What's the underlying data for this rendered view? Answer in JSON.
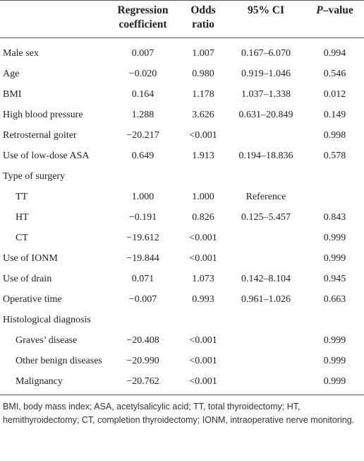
{
  "table": {
    "columns": [
      "Regression coefficient",
      "Odds ratio",
      "95% CI",
      {
        "italic": "P",
        "text": "–value"
      }
    ],
    "rows": [
      {
        "label": "Male sex",
        "coef": "0.007",
        "or": "1.007",
        "ci": "0.167–6.070",
        "p": "0.994"
      },
      {
        "label": "Age",
        "coef": "−0.020",
        "or": "0.980",
        "ci": "0.919–1.046",
        "p": "0.546"
      },
      {
        "label": "BMI",
        "coef": "0.164",
        "or": "1.178",
        "ci": "1.037–1.338",
        "p": "0.012"
      },
      {
        "label": "High blood pressure",
        "coef": "1.288",
        "or": "3.626",
        "ci": "0.631–20.849",
        "p": "0.149"
      },
      {
        "label": "Retrosternal goiter",
        "coef": "−20.217",
        "or": "<0.001",
        "p": "0.998"
      },
      {
        "label": "Use of low-dose ASA",
        "coef": "0.649",
        "or": "1.913",
        "ci": "0.194–18.836",
        "p": "0.578"
      },
      {
        "label": "Type of surgery",
        "items": [
          {
            "label": "TT",
            "coef": "1.000",
            "or": "1.000",
            "ci": "Reference"
          },
          {
            "label": "HT",
            "coef": "−0.191",
            "or": "0.826",
            "ci": "0.125–5.457",
            "p": "0.843"
          },
          {
            "label": "CT",
            "coef": "−19.612",
            "or": "<0.001",
            "p": "0.999"
          }
        ]
      },
      {
        "label": "Use of IONM",
        "coef": "−19.844",
        "or": "<0.001",
        "p": "0.999"
      },
      {
        "label": "Use of drain",
        "coef": "0.071",
        "or": "1.073",
        "ci": "0.142–8.104",
        "p": "0.945"
      },
      {
        "label": "Operative time",
        "coef": "−0.007",
        "or": "0.993",
        "ci": "0.961–1.026",
        "p": "0.663"
      },
      {
        "label": "Histological diagnosis",
        "items": [
          {
            "label": "Graves’ disease",
            "coef": "−20.408",
            "or": "<0.001",
            "p": "0.999"
          },
          {
            "label": "Other benign diseases",
            "coef": "−20.990",
            "or": "<0.001",
            "p": "0.999"
          },
          {
            "label": "Malignancy",
            "coef": "−20.762",
            "or": "<0.001",
            "p": "0.999"
          }
        ]
      }
    ],
    "footnote": "BMI, body mass index; ASA, acetylsalicylic acid; TT, total thyroidectomy; HT, hemithyroidectomy; CT, completion thyroidectomy; IONM, intraoperative nerve monitoring."
  }
}
